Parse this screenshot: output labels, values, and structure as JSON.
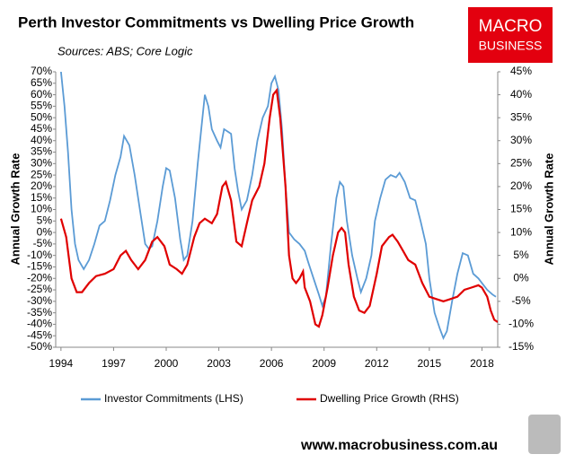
{
  "chart_data": {
    "type": "line",
    "title": "Perth Investor Commitments vs Dwelling Price Growth",
    "subtitle": "Sources: ABS; Core Logic",
    "logo": [
      "MACRO",
      "BUSINESS"
    ],
    "footer": "www.macrobusiness.com.au",
    "y_label": "Annual Growth Rate",
    "y2_label": "Annual Growth Rate",
    "xlim": [
      1993.7,
      2018.9
    ],
    "xticks": [
      1994,
      1997,
      2000,
      2003,
      2006,
      2009,
      2012,
      2015,
      2018
    ],
    "ylim": [
      -50,
      70
    ],
    "yticks": [
      {
        "value": 70,
        "label": "70%"
      },
      {
        "value": 65,
        "label": "65%"
      },
      {
        "value": 60,
        "label": "60%"
      },
      {
        "value": 55,
        "label": "55%"
      },
      {
        "value": 50,
        "label": "50%"
      },
      {
        "value": 45,
        "label": "45%"
      },
      {
        "value": 40,
        "label": "40%"
      },
      {
        "value": 35,
        "label": "35%"
      },
      {
        "value": 30,
        "label": "30%"
      },
      {
        "value": 25,
        "label": "25%"
      },
      {
        "value": 20,
        "label": "20%"
      },
      {
        "value": 15,
        "label": "15%"
      },
      {
        "value": 10,
        "label": "10%"
      },
      {
        "value": 5,
        "label": "5%"
      },
      {
        "value": 0,
        "label": "0%"
      },
      {
        "value": -5,
        "label": "-5%"
      },
      {
        "value": -10,
        "label": "-10%"
      },
      {
        "value": -15,
        "label": "-15%"
      },
      {
        "value": -20,
        "label": "-20%"
      },
      {
        "value": -25,
        "label": "-25%"
      },
      {
        "value": -30,
        "label": "-30%"
      },
      {
        "value": -35,
        "label": "-35%"
      },
      {
        "value": -40,
        "label": "-40%"
      },
      {
        "value": -45,
        "label": "-45%"
      },
      {
        "value": -50,
        "label": "-50%"
      }
    ],
    "y2lim": [
      -15,
      45
    ],
    "y2ticks": [
      {
        "value": 45,
        "label": "45%"
      },
      {
        "value": 40,
        "label": "40%"
      },
      {
        "value": 35,
        "label": "35%"
      },
      {
        "value": 30,
        "label": "30%"
      },
      {
        "value": 25,
        "label": "25%"
      },
      {
        "value": 20,
        "label": "20%"
      },
      {
        "value": 15,
        "label": "15%"
      },
      {
        "value": 10,
        "label": "10%"
      },
      {
        "value": 5,
        "label": "5%"
      },
      {
        "value": 0,
        "label": "0%"
      },
      {
        "value": -5,
        "label": "-5%"
      },
      {
        "value": -10,
        "label": "-10%"
      },
      {
        "value": -15,
        "label": "-15%"
      }
    ],
    "series": [
      {
        "name": "Investor Commitments (LHS)",
        "color": "#5b9bd5",
        "x": [
          1994.0,
          1994.2,
          1994.4,
          1994.6,
          1994.8,
          1995.0,
          1995.3,
          1995.6,
          1995.9,
          1996.2,
          1996.5,
          1996.8,
          1997.1,
          1997.4,
          1997.6,
          1997.9,
          1998.2,
          1998.5,
          1998.8,
          1999.0,
          1999.2,
          1999.5,
          1999.8,
          2000.0,
          2000.2,
          2000.5,
          2000.8,
          2001.0,
          2001.2,
          2001.5,
          2001.8,
          2002.0,
          2002.2,
          2002.4,
          2002.6,
          2002.9,
          2003.1,
          2003.3,
          2003.5,
          2003.7,
          2003.9,
          2004.1,
          2004.3,
          2004.6,
          2004.9,
          2005.2,
          2005.5,
          2005.8,
          2006.0,
          2006.2,
          2006.4,
          2006.6,
          2006.8,
          2007.0,
          2007.3,
          2007.6,
          2007.9,
          2008.1,
          2008.4,
          2008.7,
          2008.9,
          2009.1,
          2009.4,
          2009.7,
          2009.9,
          2010.1,
          2010.3,
          2010.6,
          2010.9,
          2011.1,
          2011.4,
          2011.7,
          2011.9,
          2012.2,
          2012.5,
          2012.8,
          2013.1,
          2013.3,
          2013.6,
          2013.9,
          2014.2,
          2014.5,
          2014.8,
          2015.0,
          2015.3,
          2015.6,
          2015.8,
          2016.0,
          2016.3,
          2016.6,
          2016.9,
          2017.2,
          2017.5,
          2017.8,
          2018.0,
          2018.3,
          2018.6,
          2018.8
        ],
        "values": [
          70,
          55,
          35,
          10,
          -5,
          -12,
          -16,
          -12,
          -5,
          3,
          5,
          14,
          25,
          33,
          42,
          38,
          25,
          10,
          -5,
          -7,
          -6,
          5,
          20,
          28,
          27,
          15,
          -3,
          -12,
          -10,
          5,
          30,
          45,
          60,
          55,
          45,
          40,
          37,
          45,
          44,
          43,
          28,
          18,
          10,
          14,
          25,
          40,
          50,
          55,
          65,
          68,
          62,
          45,
          20,
          0,
          -3,
          -5,
          -8,
          -13,
          -20,
          -27,
          -32,
          -28,
          -5,
          15,
          22,
          20,
          5,
          -10,
          -20,
          -26,
          -20,
          -10,
          5,
          15,
          23,
          25,
          24,
          26,
          22,
          15,
          14,
          5,
          -5,
          -20,
          -35,
          -42,
          -46,
          -43,
          -30,
          -18,
          -9,
          -10,
          -18,
          -20,
          -22,
          -25,
          -27,
          -28
        ]
      },
      {
        "name": "Dwelling Price Growth (RHS)",
        "color": "#e00000",
        "axis": "y2",
        "x": [
          1994.0,
          1994.3,
          1994.6,
          1994.9,
          1995.2,
          1995.6,
          1996.0,
          1996.5,
          1997.0,
          1997.4,
          1997.7,
          1998.0,
          1998.4,
          1998.8,
          1999.2,
          1999.5,
          1999.9,
          2000.2,
          2000.6,
          2000.9,
          2001.2,
          2001.6,
          2001.9,
          2002.2,
          2002.6,
          2002.9,
          2003.2,
          2003.4,
          2003.7,
          2004.0,
          2004.3,
          2004.6,
          2004.9,
          2005.3,
          2005.6,
          2005.9,
          2006.1,
          2006.3,
          2006.5,
          2006.8,
          2007.0,
          2007.2,
          2007.4,
          2007.6,
          2007.8,
          2007.9,
          2008.2,
          2008.5,
          2008.7,
          2008.9,
          2009.2,
          2009.5,
          2009.8,
          2010.0,
          2010.2,
          2010.4,
          2010.7,
          2011.0,
          2011.3,
          2011.6,
          2012.0,
          2012.3,
          2012.7,
          2012.9,
          2013.2,
          2013.5,
          2013.8,
          2014.2,
          2014.6,
          2015.0,
          2015.4,
          2015.8,
          2016.2,
          2016.6,
          2017.0,
          2017.4,
          2017.8,
          2018.0,
          2018.3,
          2018.5,
          2018.7,
          2018.9
        ],
        "values": [
          13,
          9,
          0,
          -3,
          -3,
          -1,
          0.5,
          1,
          2,
          5,
          6,
          4,
          2,
          4,
          8,
          9,
          7,
          3,
          2,
          1,
          3,
          9,
          12,
          13,
          12,
          14,
          20,
          21,
          17,
          8,
          7,
          12,
          17,
          20,
          25,
          35,
          40,
          41,
          35,
          20,
          5,
          0,
          -1,
          0,
          1.5,
          -2,
          -5,
          -10,
          -10.5,
          -8,
          -2,
          5,
          10,
          11,
          10,
          3,
          -4,
          -7,
          -7.5,
          -6,
          1,
          7,
          9,
          9.5,
          8,
          6,
          4,
          3,
          -1,
          -4,
          -4.5,
          -5,
          -4.5,
          -4,
          -2.5,
          -2,
          -1.5,
          -2,
          -4,
          -7,
          -9,
          -9.5
        ]
      }
    ]
  }
}
